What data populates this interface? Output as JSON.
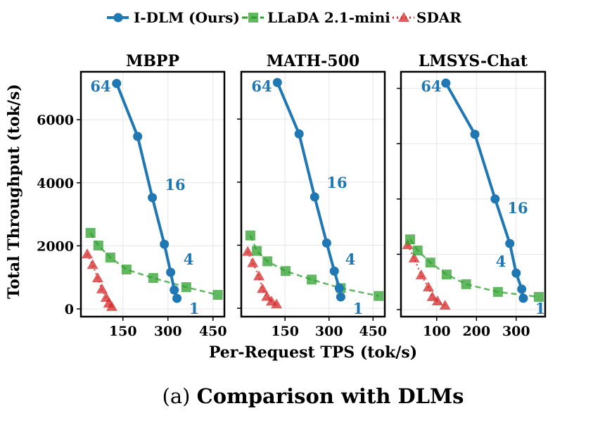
{
  "legend": [
    {
      "name": "I-DLM (Ours)",
      "color": "#1f77b4",
      "marker": "circle",
      "line": "solid"
    },
    {
      "name": "LLaDA 2.1-mini",
      "color": "#2ca02c",
      "marker": "square",
      "line": "dashed"
    },
    {
      "name": "SDAR",
      "color": "#d62728",
      "marker": "triangle",
      "line": "dotted"
    }
  ],
  "caption": {
    "prefix": "(a)",
    "text": "Comparison with DLMs"
  },
  "chart_data": [
    {
      "type": "line",
      "title": "MBPP",
      "xlabel": "Per-Request TPS (tok/s)",
      "ylabel": "Total Throughput (tok/s)",
      "xlim": [
        10,
        488
      ],
      "ylim": [
        -245,
        7520
      ],
      "xticks": [
        "150",
        "300",
        "450"
      ],
      "xtick_values": [
        150,
        300,
        450
      ],
      "yticks": [
        "0",
        "2000",
        "4000",
        "6000"
      ],
      "ytick_values": [
        0,
        2000,
        4000,
        6000
      ],
      "grid": true,
      "series": [
        {
          "name": "I-DLM (Ours)",
          "x": [
            129,
            199,
            248,
            288,
            309,
            321,
            330
          ],
          "y": [
            7150,
            5470,
            3530,
            2050,
            1160,
            600,
            335
          ]
        },
        {
          "name": "LLaDA 2.1-mini",
          "x": [
            42,
            68,
            108,
            162,
            251,
            361,
            466
          ],
          "y": [
            2410,
            2010,
            1630,
            1250,
            980,
            690,
            445
          ]
        },
        {
          "name": "SDAR",
          "x": [
            31,
            49,
            66,
            80,
            94,
            103,
            113
          ],
          "y": [
            1740,
            1400,
            980,
            630,
            360,
            180,
            70
          ]
        }
      ],
      "annotations": [
        "64",
        "16",
        "4",
        "1"
      ]
    },
    {
      "type": "line",
      "title": "MATH-500",
      "xlim": [
        1,
        490
      ],
      "ylim": [
        -265,
        7500
      ],
      "xticks": [
        "150",
        "300",
        "450"
      ],
      "xtick_values": [
        150,
        300,
        450
      ],
      "ytick_values": [
        0,
        2000,
        4000,
        6000
      ],
      "grid": true,
      "series": [
        {
          "name": "I-DLM (Ours)",
          "x": [
            124,
            198,
            251,
            292,
            318,
            335,
            340
          ],
          "y": [
            7160,
            5530,
            3530,
            2070,
            1180,
            640,
            360
          ]
        },
        {
          "name": "LLaDA 2.1-mini",
          "x": [
            32,
            54,
            90,
            152,
            241,
            340,
            469
          ],
          "y": [
            2310,
            1820,
            1490,
            1180,
            910,
            640,
            390
          ]
        },
        {
          "name": "SDAR",
          "x": [
            23,
            40,
            61,
            73,
            88,
            104,
            121
          ],
          "y": [
            1800,
            1440,
            1020,
            620,
            370,
            220,
            130
          ]
        }
      ],
      "annotations": [
        "64",
        "16",
        "4",
        "1"
      ]
    },
    {
      "type": "line",
      "title": "LMSYS-Chat",
      "xlim": [
        10,
        373
      ],
      "ylim": [
        -254,
        8600
      ],
      "xticks": [
        "100",
        "200",
        "300"
      ],
      "xtick_values": [
        100,
        200,
        300
      ],
      "ytick_values": [
        0,
        2000,
        4000,
        6000,
        8000
      ],
      "grid": true,
      "series": [
        {
          "name": "I-DLM (Ours)",
          "x": [
            123,
            196,
            247,
            284,
            300,
            314,
            318
          ],
          "y": [
            8190,
            6340,
            4000,
            2390,
            1320,
            740,
            410
          ]
        },
        {
          "name": "LLaDA 2.1-mini",
          "x": [
            33,
            52,
            84,
            125,
            174,
            254,
            357
          ],
          "y": [
            2540,
            2140,
            1700,
            1270,
            920,
            640,
            460
          ]
        },
        {
          "name": "SDAR",
          "x": [
            27,
            43,
            61,
            79,
            89,
            102,
            121
          ],
          "y": [
            2340,
            1860,
            1250,
            810,
            460,
            305,
            150
          ]
        }
      ],
      "annotations": [
        "64",
        "16",
        "4",
        "1"
      ]
    }
  ]
}
